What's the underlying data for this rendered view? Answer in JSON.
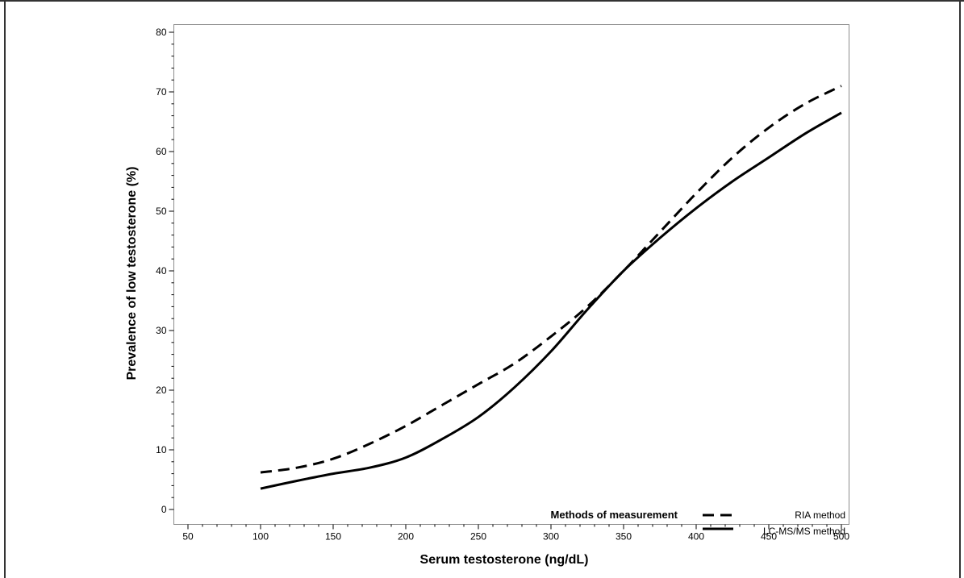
{
  "chart_data": {
    "type": "line",
    "xlabel": "Serum testosterone (ng/dL)",
    "ylabel": "Prevalence of low testosterone (%)",
    "xlim": [
      50,
      500
    ],
    "ylim": [
      0,
      80
    ],
    "x_ticks": [
      "50",
      "100",
      "150",
      "200",
      "250",
      "300",
      "350",
      "400",
      "450",
      "500"
    ],
    "y_ticks": [
      "0",
      "10",
      "20",
      "30",
      "40",
      "50",
      "60",
      "70",
      "80"
    ],
    "grid": false,
    "legend": {
      "title": "Methods of measurement",
      "placement": "bottom-right"
    },
    "series": [
      {
        "name": "RIA method",
        "style": "dashed",
        "color": "#000000",
        "x": [
          100,
          125,
          150,
          175,
          200,
          225,
          250,
          275,
          300,
          325,
          350,
          375,
          400,
          425,
          450,
          475,
          500
        ],
        "y": [
          6.2,
          7.0,
          8.5,
          11.0,
          14.0,
          17.5,
          21.0,
          24.5,
          29.0,
          34.0,
          40.0,
          46.5,
          53.0,
          59.0,
          64.0,
          68.0,
          71.0
        ]
      },
      {
        "name": "LC-MS/MS method",
        "style": "solid",
        "color": "#000000",
        "x": [
          100,
          125,
          150,
          175,
          200,
          225,
          250,
          275,
          300,
          325,
          350,
          375,
          400,
          425,
          450,
          475,
          500
        ],
        "y": [
          3.5,
          4.8,
          6.0,
          7.0,
          8.7,
          11.8,
          15.5,
          20.5,
          26.5,
          33.5,
          40.0,
          45.5,
          50.5,
          55.0,
          59.0,
          63.0,
          66.5
        ]
      }
    ]
  }
}
